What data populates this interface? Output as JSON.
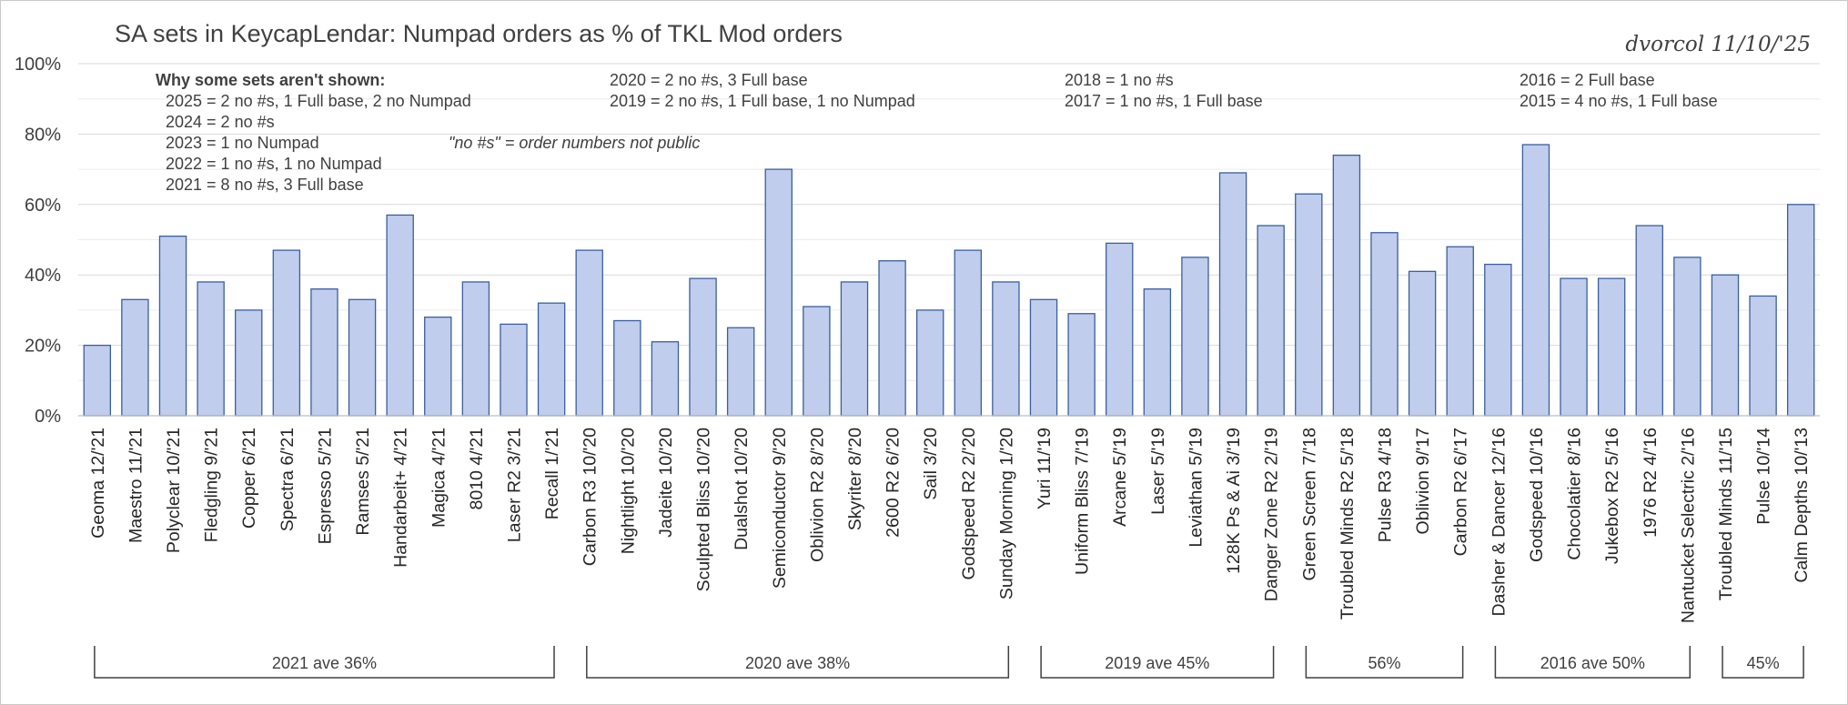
{
  "chart_data": {
    "type": "bar",
    "title": "SA sets in KeycapLendar: Numpad orders as % of TKL Mod orders",
    "signature": "dvorcol 11/10/'25",
    "xlabel": "",
    "ylabel": "",
    "ylim": [
      0,
      100
    ],
    "yticks": [
      "0%",
      "20%",
      "40%",
      "60%",
      "80%",
      "100%"
    ],
    "grid": true,
    "categories": [
      "Geoma 12/'21",
      "Maestro 11/'21",
      "Polyclear 10/'21",
      "Fledgling 9/'21",
      "Copper 6/'21",
      "Spectra 6/'21",
      "Espresso 5/'21",
      "Ramses 5/'21",
      "Handarbeit+ 4/'21",
      "Magica 4/'21",
      "8010 4/'21",
      "Laser R2 3/'21",
      "Recall 1/'21",
      "Carbon R3 10/'20",
      "Nightlight 10/'20",
      "Jadeite 10/'20",
      "Sculpted Bliss 10/'20",
      "Dualshot 10/'20",
      "Semiconductor 9/'20",
      "Oblivion R2 8/'20",
      "Skyriter 8/'20",
      "2600 R2 6/'20",
      "Sail 3/'20",
      "Godspeed R2 2/'20",
      "Sunday Morning 1/'20",
      "Yuri 11/'19",
      "Uniform Bliss 7/'19",
      "Arcane 5/'19",
      "Laser 5/'19",
      "Leviathan 5/'19",
      "128K Ps & Ai 3/'19",
      "Danger Zone R2 2/'19",
      "Green Screen 7/'18",
      "Troubled Minds R2 5/'18",
      "Pulse R3 4/'18",
      "Oblivion 9/'17",
      "Carbon R2 6/'17",
      "Dasher & Dancer 12/'16",
      "Godspeed 10/'16",
      "Chocolatier 8/'16",
      "Jukebox R2 5/'16",
      "1976 R2 4/'16",
      "Nantucket Selectric 2/'16",
      "Troubled Minds 11/'15",
      "Pulse 10/'14",
      "Calm Depths 10/'13"
    ],
    "values": [
      20,
      33,
      51,
      38,
      30,
      47,
      36,
      33,
      57,
      28,
      38,
      26,
      32,
      47,
      27,
      21,
      39,
      25,
      70,
      31,
      38,
      44,
      30,
      47,
      38,
      33,
      29,
      49,
      36,
      45,
      69,
      54,
      63,
      74,
      52,
      41,
      48,
      43,
      77,
      39,
      39,
      54,
      45,
      40,
      34,
      60
    ],
    "notes": {
      "heading": "Why some sets aren't shown:",
      "col1": [
        "2025 = 2 no #s, 1 Full base, 2 no Numpad",
        "2024 = 2 no #s",
        "2023 = 1 no Numpad",
        "2022 = 1 no #s, 1 no Numpad",
        "2021 = 8 no #s, 3 Full base"
      ],
      "col2": [
        "2020 = 2 no #s, 3 Full base",
        "2019 = 2 no #s, 1 Full base, 1 no Numpad"
      ],
      "col3": [
        "2018 = 1 no #s",
        "2017 = 1 no #s, 1 Full base"
      ],
      "col4": [
        "2016 = 2 Full base",
        "2015 = 4 no #s, 1 Full base"
      ],
      "definition": "\"no #s\" = order numbers not public"
    },
    "groups": [
      {
        "label": "2021 ave 36%",
        "from": 0,
        "to": 12
      },
      {
        "label": "2020 ave 38%",
        "from": 13,
        "to": 24
      },
      {
        "label": "2019 ave 45%",
        "from": 25,
        "to": 31
      },
      {
        "label": "56%",
        "from": 32,
        "to": 36
      },
      {
        "label": "2016 ave 50%",
        "from": 37,
        "to": 42
      },
      {
        "label": "45%",
        "from": 43,
        "to": 45
      }
    ]
  }
}
